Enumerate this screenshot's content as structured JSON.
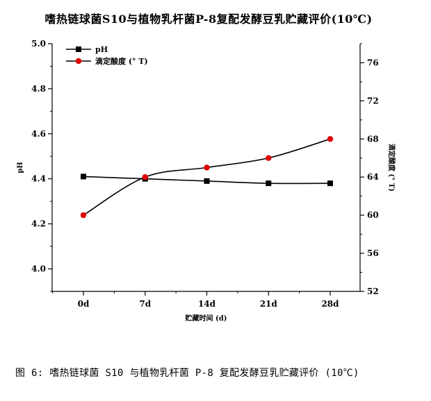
{
  "title": "嗜热链球菌S10与植物乳杆菌P-8复配发酵豆乳贮藏评价(10℃)",
  "caption": "图 6: 嗜热链球菌 S10 与植物乳杆菌 P-8 复配发酵豆乳贮藏评价 (10℃)",
  "chart_data": {
    "type": "line",
    "categories": [
      "0d",
      "7d",
      "14d",
      "21d",
      "28d"
    ],
    "x_label": "贮藏时间 (d)",
    "y_left": {
      "label": "pH",
      "range": [
        3.9,
        5.0
      ],
      "ticks": [
        "4.0",
        "4.2",
        "4.4",
        "4.6",
        "4.8",
        "5.0"
      ]
    },
    "y_right": {
      "label": "滴定酸度 (° T)",
      "range": [
        52,
        78
      ],
      "ticks": [
        "52",
        "56",
        "60",
        "64",
        "68",
        "72",
        "76"
      ]
    },
    "series": [
      {
        "name": "pH",
        "axis": "left",
        "color": "#000000",
        "marker": "square",
        "values": [
          4.41,
          4.4,
          4.39,
          4.38,
          4.38
        ]
      },
      {
        "name": "滴定酸度 (° T)",
        "axis": "right",
        "color": "#e00000",
        "marker": "circle",
        "values": [
          60.0,
          64.0,
          65.0,
          66.0,
          68.0
        ]
      }
    ],
    "grid": false,
    "legend_position": "top-left"
  }
}
